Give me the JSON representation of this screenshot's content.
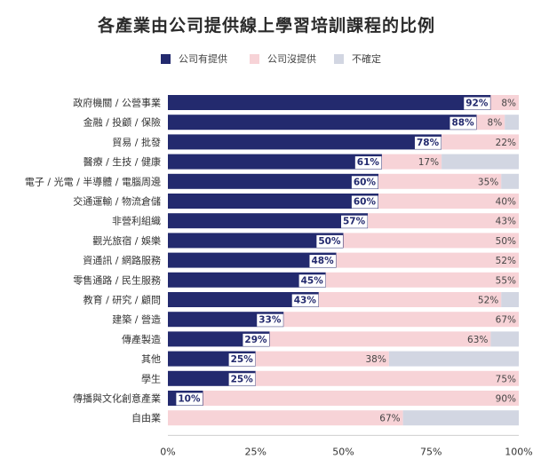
{
  "chart_data": {
    "type": "bar",
    "orientation": "horizontal",
    "stacked": true,
    "title": "各產業由公司提供線上學習培訓課程的比例",
    "categories": [
      "政府機關 / 公營事業",
      "金融 / 投顧 / 保險",
      "貿易 / 批發",
      "醫療 / 生技 / 健康",
      "電子 / 光電 / 半導體 / 電腦周邊",
      "交通運輸 / 物流倉儲",
      "非營利組織",
      "觀光旅宿 / 娛樂",
      "資通訊 / 網路服務",
      "零售通路 / 民生服務",
      "教育 / 研究 / 顧問",
      "建築 / 營造",
      "傳產製造",
      "其他",
      "學生",
      "傳播與文化創意產業",
      "自由業"
    ],
    "series": [
      {
        "name": "公司有提供",
        "color": "#232a6e",
        "values": [
          92,
          88,
          78,
          61,
          60,
          60,
          57,
          50,
          48,
          45,
          43,
          33,
          29,
          25,
          25,
          10,
          0
        ],
        "labels": [
          "92%",
          "88%",
          "78%",
          "61%",
          "60%",
          "60%",
          "57%",
          "50%",
          "48%",
          "45%",
          "43%",
          "33%",
          "29%",
          "25%",
          "25%",
          "10%",
          ""
        ]
      },
      {
        "name": "公司沒提供",
        "color": "#f7d3d7",
        "values": [
          8,
          8,
          22,
          17,
          35,
          40,
          43,
          50,
          52,
          55,
          52,
          67,
          63,
          38,
          75,
          90,
          67
        ],
        "labels": [
          "8%",
          "8%",
          "22%",
          "17%",
          "35%",
          "40%",
          "43%",
          "50%",
          "52%",
          "55%",
          "52%",
          "67%",
          "63%",
          "38%",
          "75%",
          "90%",
          "67%"
        ]
      },
      {
        "name": "不確定",
        "color": "#d2d6e2",
        "values": [
          0,
          4,
          0,
          22,
          5,
          0,
          0,
          0,
          0,
          0,
          5,
          0,
          8,
          37,
          0,
          0,
          33
        ],
        "labels": [
          "",
          "",
          "",
          "",
          "",
          "",
          "",
          "",
          "",
          "",
          "",
          "",
          "",
          "",
          "",
          "",
          ""
        ]
      }
    ],
    "xlim": [
      0,
      100
    ],
    "xticks": [
      "0%",
      "25%",
      "50%",
      "75%",
      "100%"
    ],
    "legend_position": "top",
    "grid": false
  }
}
